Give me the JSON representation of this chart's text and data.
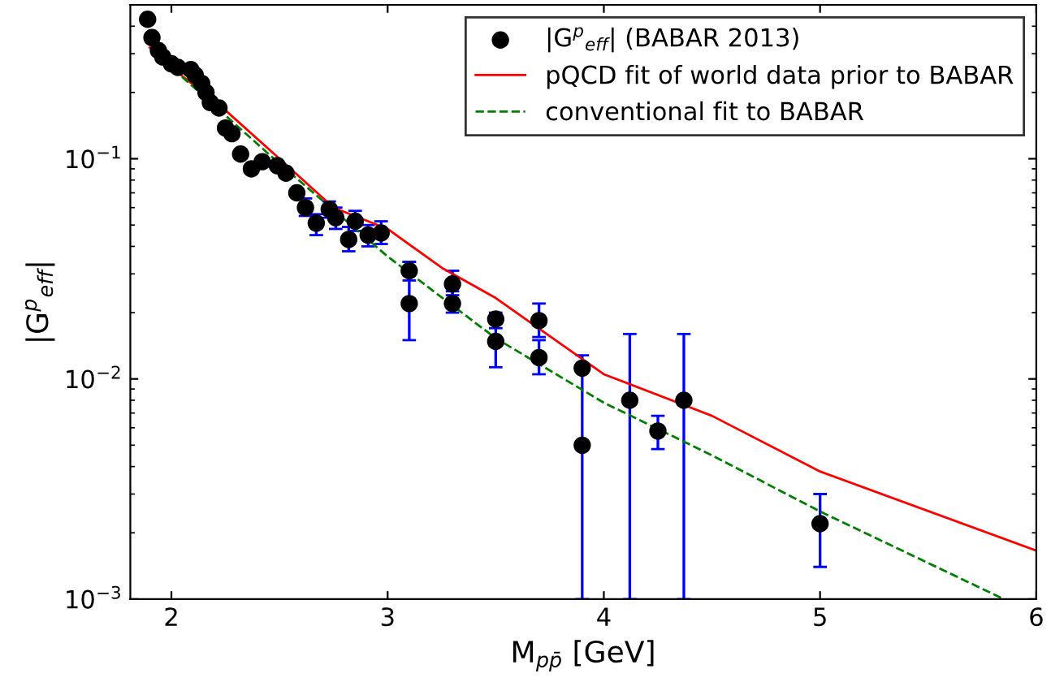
{
  "chart_data": {
    "type": "scatter",
    "xlabel": "M$_{pp̄}$ [GeV]",
    "ylabel": "|G$^{p}$$_{eff}$|",
    "log": "y",
    "xlim": [
      1.81,
      6
    ],
    "xticks": [
      2,
      3,
      4,
      5,
      6
    ],
    "ylim": [
      0.001,
      0.5
    ],
    "yticks": [
      {
        "value": 0.001,
        "label": "10$^{−3}$"
      },
      {
        "value": 0.01,
        "label": "10$^{−2}$"
      },
      {
        "value": 0.1,
        "label": "10$^{−1}$"
      }
    ],
    "grid": false,
    "legend": "top right",
    "series": [
      {
        "name": "|G$^{p}$$_{eff}$| (BABAR 2013)",
        "color": "#000000",
        "marker": "circle",
        "x": [
          1.89,
          1.91,
          1.94,
          1.96,
          2.0,
          2.03,
          2.09,
          2.11,
          2.14,
          2.16,
          2.18,
          2.22,
          2.25,
          2.28,
          2.32,
          2.37,
          2.42,
          2.49,
          2.53,
          2.58,
          2.62,
          2.67,
          2.73,
          2.76,
          2.82,
          2.85,
          2.91,
          2.97,
          3.1,
          3.1,
          3.3,
          3.3,
          3.5,
          3.5,
          3.7,
          3.7,
          3.9,
          3.9,
          4.12,
          4.25,
          4.37,
          5.0
        ],
        "values": [
          0.43,
          0.355,
          0.31,
          0.29,
          0.27,
          0.26,
          0.254,
          0.24,
          0.22,
          0.2,
          0.18,
          0.17,
          0.138,
          0.13,
          0.105,
          0.09,
          0.097,
          0.093,
          0.086,
          0.07,
          0.06,
          0.051,
          0.059,
          0.054,
          0.043,
          0.052,
          0.045,
          0.046,
          0.031,
          0.022,
          0.027,
          0.022,
          0.0187,
          0.0148,
          0.0184,
          0.0125,
          0.0112,
          0.005,
          0.008,
          0.0058,
          0.008,
          0.0022
        ],
        "errors": [
          null,
          null,
          null,
          null,
          null,
          null,
          null,
          null,
          null,
          null,
          null,
          null,
          null,
          null,
          null,
          null,
          null,
          null,
          null,
          null,
          [
            0.055,
            0.066
          ],
          [
            0.045,
            0.056
          ],
          [
            0.054,
            0.064
          ],
          [
            0.048,
            0.06
          ],
          [
            0.038,
            0.049
          ],
          [
            0.047,
            0.058
          ],
          [
            0.04,
            0.05
          ],
          [
            0.041,
            0.052
          ],
          [
            0.028,
            0.034
          ],
          [
            0.015,
            0.034
          ],
          [
            0.024,
            0.031
          ],
          [
            0.02,
            0.025
          ],
          [
            0.017,
            0.02
          ],
          [
            0.0113,
            0.018
          ],
          [
            0.0155,
            0.022
          ],
          [
            0.0105,
            0.015
          ],
          [
            0.001,
            0.0128
          ],
          null,
          [
            0.001,
            0.016
          ],
          [
            0.0048,
            0.0068
          ],
          [
            0.001,
            0.016
          ],
          [
            0.0014,
            0.003
          ]
        ]
      },
      {
        "name": "pQCD fit of world data prior to BABAR",
        "type": "line",
        "color": "#ff0000",
        "line_style": "solid",
        "x": [
          1.9,
          2.0,
          2.25,
          2.5,
          2.75,
          3.0,
          3.25,
          3.5,
          4.0,
          4.5,
          5.0,
          6.0
        ],
        "values": [
          0.32,
          0.26,
          0.166,
          0.1,
          0.06,
          0.048,
          0.032,
          0.0233,
          0.0105,
          0.0068,
          0.0038,
          0.00166
        ]
      },
      {
        "name": "conventional fit to BABAR",
        "type": "line",
        "color": "#008000",
        "line_style": "dashed",
        "x": [
          1.9,
          2.0,
          2.5,
          3.0,
          3.5,
          4.0,
          4.5,
          5.0,
          5.85
        ],
        "values": [
          0.34,
          0.26,
          0.095,
          0.036,
          0.0153,
          0.0078,
          0.0045,
          0.0025,
          0.001
        ]
      }
    ]
  }
}
